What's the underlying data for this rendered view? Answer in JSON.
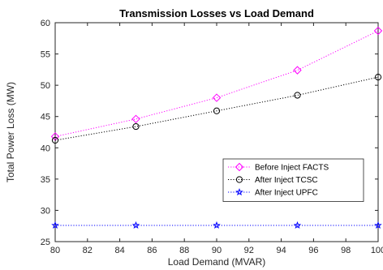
{
  "chart_data": {
    "type": "line",
    "title": "Transmission Losses vs Load Demand",
    "xlabel": "Load Demand (MVAR)",
    "ylabel": "Total Power Loss (MW)",
    "xlim": [
      80,
      100
    ],
    "ylim": [
      25,
      60
    ],
    "xticks": [
      "80",
      "82",
      "84",
      "86",
      "88",
      "90",
      "92",
      "94",
      "96",
      "98",
      "100"
    ],
    "yticks": [
      "25",
      "30",
      "35",
      "40",
      "45",
      "50",
      "55",
      "60"
    ],
    "grid": false,
    "legend_position": "center-right",
    "x": [
      80,
      85,
      90,
      95,
      100
    ],
    "series": [
      {
        "name": "Before Inject FACTS",
        "values": [
          41.8,
          44.6,
          48.0,
          52.4,
          58.7
        ],
        "color": "#ff00ff",
        "marker": "diamond",
        "line_style": "dotted"
      },
      {
        "name": "After Inject TCSC",
        "values": [
          41.2,
          43.4,
          45.9,
          48.4,
          51.3
        ],
        "color": "#000000",
        "marker": "circle",
        "line_style": "dotted"
      },
      {
        "name": "After Inject UPFC",
        "values": [
          27.6,
          27.6,
          27.6,
          27.6,
          27.6
        ],
        "color": "#0000ff",
        "marker": "star",
        "line_style": "dotted"
      }
    ]
  }
}
